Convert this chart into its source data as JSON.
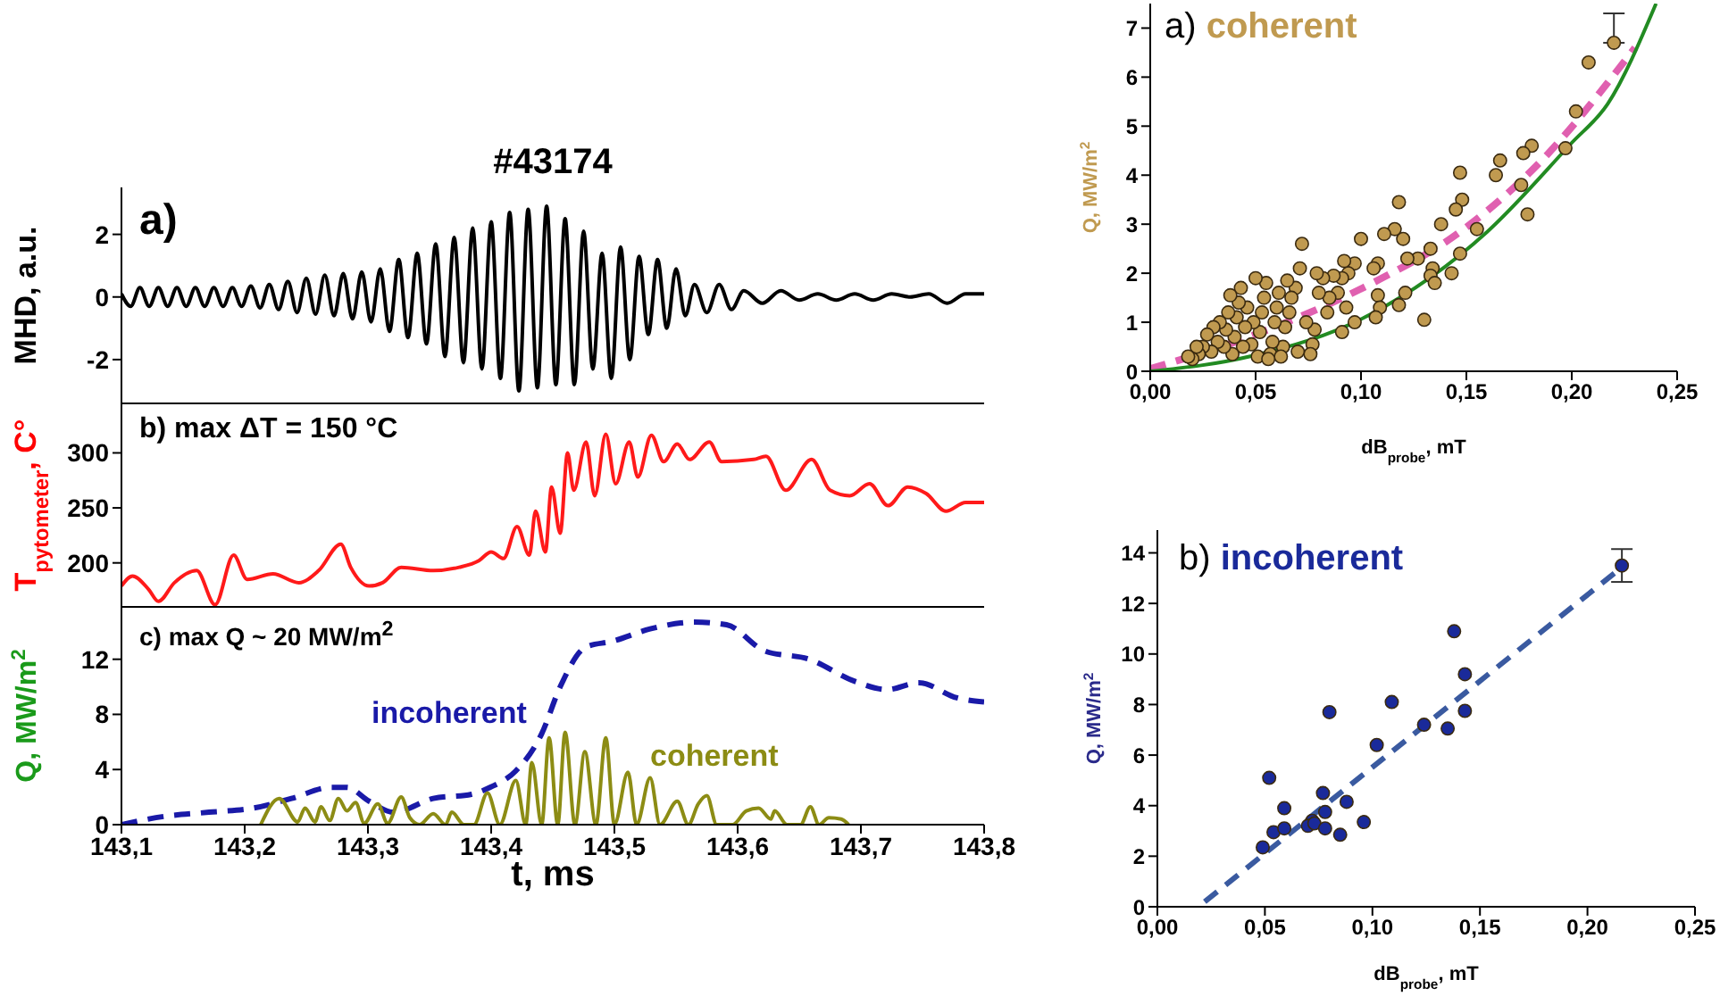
{
  "chart_data": [
    {
      "type": "line",
      "title": "#43174",
      "ylabel": "MHD, a.u.",
      "annotations": [
        "a)"
      ],
      "xlim": [
        143.1,
        143.8
      ],
      "xticks": [
        {
          "value": 143.1,
          "label": null
        },
        {
          "value": 143.2,
          "label": null
        },
        {
          "value": 143.3,
          "label": null
        },
        {
          "value": 143.4,
          "label": null
        },
        {
          "value": 143.5,
          "label": null
        },
        {
          "value": 143.6,
          "label": null
        },
        {
          "value": 143.7,
          "label": null
        },
        {
          "value": 143.8,
          "label": null
        }
      ],
      "ylim": [
        -3.4,
        3.5
      ],
      "yticks": [
        -2,
        0,
        2
      ],
      "tick_labels": "y",
      "series": [
        {
          "color": "#000000",
          "line_style": "solid",
          "x": [
            143.1,
            143.1075,
            143.115,
            143.1225,
            143.13,
            143.1375,
            143.145,
            143.1525,
            143.16,
            143.1675,
            143.175,
            143.1825,
            143.19,
            143.1975,
            143.205,
            143.2125,
            143.22,
            143.2275,
            143.235,
            143.2425,
            143.25,
            143.2575,
            143.265,
            143.2725,
            143.28,
            143.2875,
            143.295,
            143.3025,
            143.31,
            143.3175,
            143.325,
            143.3325,
            143.34,
            143.3475,
            143.355,
            143.3625,
            143.37,
            143.3775,
            143.385,
            143.3925,
            143.4,
            143.4075,
            143.415,
            143.4225,
            143.43,
            143.4375,
            143.445,
            143.4525,
            143.46,
            143.4675,
            143.475,
            143.4825,
            143.49,
            143.4975,
            143.505,
            143.5125,
            143.52,
            143.5275,
            143.535,
            143.5425,
            143.55,
            143.5575,
            143.565,
            143.575,
            143.585,
            143.595,
            143.605,
            143.62,
            143.635,
            143.65,
            143.665,
            143.68,
            143.695,
            143.71,
            143.725,
            143.74,
            143.755,
            143.77,
            143.785,
            143.8
          ],
          "values": [
            0.1,
            -0.3,
            0.3,
            -0.3,
            0.3,
            -0.3,
            0.3,
            -0.3,
            0.3,
            -0.3,
            0.3,
            -0.3,
            0.3,
            -0.3,
            0.35,
            -0.35,
            0.4,
            -0.4,
            0.5,
            -0.5,
            0.6,
            -0.55,
            0.7,
            -0.6,
            0.75,
            -0.7,
            0.8,
            -0.8,
            0.9,
            -1.1,
            1.2,
            -1.3,
            1.4,
            -1.5,
            1.7,
            -1.9,
            1.9,
            -2.1,
            2.2,
            -2.3,
            2.4,
            -2.6,
            2.7,
            -3.0,
            2.8,
            -2.9,
            2.9,
            -2.8,
            2.5,
            -2.8,
            2.1,
            -2.3,
            1.4,
            -2.6,
            1.6,
            -2.0,
            1.3,
            -1.2,
            1.2,
            -1.0,
            0.9,
            -0.6,
            0.4,
            -0.5,
            0.4,
            -0.4,
            0.2,
            -0.2,
            0.2,
            -0.1,
            0.1,
            -0.1,
            0.1,
            -0.1,
            0.1,
            0.0,
            0.1,
            -0.2,
            0.1,
            0.1
          ]
        }
      ]
    },
    {
      "type": "line",
      "ylabel": "T$_{pytometer}$, C°",
      "annotations": [
        "b) max ΔT = 150 °C"
      ],
      "xlim": [
        143.1,
        143.8
      ],
      "xticks": [
        {
          "value": 143.1,
          "label": null
        },
        {
          "value": 143.2,
          "label": null
        },
        {
          "value": 143.3,
          "label": null
        },
        {
          "value": 143.4,
          "label": null
        },
        {
          "value": 143.5,
          "label": null
        },
        {
          "value": 143.6,
          "label": null
        },
        {
          "value": 143.7,
          "label": null
        },
        {
          "value": 143.8,
          "label": null
        }
      ],
      "ylim": [
        160,
        345
      ],
      "yticks": [
        200,
        250,
        300
      ],
      "tick_labels": "y",
      "series": [
        {
          "color": "#ff1a1a",
          "line_style": "solid",
          "x": [
            143.1,
            143.109,
            143.122,
            143.13,
            143.143,
            143.161,
            143.176,
            143.191,
            143.202,
            143.223,
            143.244,
            143.26,
            143.278,
            143.286,
            143.301,
            143.312,
            143.327,
            143.353,
            143.374,
            143.39,
            143.4,
            143.41,
            143.421,
            143.431,
            143.436,
            143.444,
            143.449,
            143.456,
            143.462,
            143.467,
            143.477,
            143.484,
            143.493,
            143.501,
            143.512,
            143.519,
            143.53,
            143.54,
            143.551,
            143.561,
            143.577,
            143.587,
            143.613,
            143.623,
            143.639,
            143.66,
            143.675,
            143.691,
            143.707,
            143.722,
            143.738,
            143.753,
            143.769,
            143.785,
            143.8
          ],
          "values": [
            179,
            188,
            176,
            165,
            182,
            193,
            162,
            207,
            185,
            190,
            182,
            193,
            217,
            196,
            179,
            182,
            196,
            193,
            196,
            202,
            210,
            204,
            233,
            207,
            247,
            210,
            269,
            227,
            300,
            266,
            310,
            261,
            317,
            272,
            310,
            278,
            316,
            292,
            308,
            294,
            310,
            292,
            294,
            297,
            266,
            294,
            266,
            261,
            272,
            252,
            269,
            263,
            247,
            255,
            255
          ]
        }
      ]
    },
    {
      "type": "line",
      "ylabel": "Q, MW/m$^{2}$",
      "xlabel": "t, ms",
      "annotations": [
        "c) max Q ~ 20 MW/m$^{2}$"
      ],
      "xlim": [
        143.1,
        143.8
      ],
      "xticks": [
        {
          "value": 143.1,
          "label": "143,1"
        },
        {
          "value": 143.2,
          "label": "143,2"
        },
        {
          "value": 143.3,
          "label": "143,3"
        },
        {
          "value": 143.4,
          "label": "143,4"
        },
        {
          "value": 143.5,
          "label": "143,5"
        },
        {
          "value": 143.6,
          "label": "143,6"
        },
        {
          "value": 143.7,
          "label": "143,7"
        },
        {
          "value": 143.8,
          "label": "143,8"
        }
      ],
      "ylim": [
        0,
        15.8
      ],
      "yticks": [
        0,
        4,
        8,
        12
      ],
      "series": [
        {
          "name": "incoherent",
          "color": "#1a1aa8",
          "line_style": "dashed",
          "x": [
            143.1,
            143.135,
            143.171,
            143.207,
            143.238,
            143.27,
            143.283,
            143.301,
            143.321,
            143.353,
            143.384,
            143.399,
            143.42,
            143.441,
            143.456,
            143.477,
            143.498,
            143.529,
            143.565,
            143.591,
            143.622,
            143.658,
            143.695,
            143.721,
            143.747,
            143.778,
            143.8
          ],
          "values": [
            0,
            0.6,
            0.9,
            1.2,
            1.9,
            2.7,
            2.7,
            1.7,
            0.9,
            1.9,
            2.2,
            2.7,
            3.9,
            6.6,
            10.0,
            12.9,
            13.3,
            14.2,
            14.7,
            14.5,
            12.6,
            12.0,
            10.4,
            9.8,
            10.3,
            9.2,
            8.9
          ]
        },
        {
          "name": "coherent",
          "color": "#8c8c14",
          "line_style": "solid",
          "x": [
            143.213,
            143.228,
            143.243,
            143.249,
            143.257,
            143.262,
            143.269,
            143.276,
            143.283,
            143.29,
            143.297,
            143.308,
            143.316,
            143.327,
            143.334,
            143.342,
            143.353,
            143.363,
            143.368,
            143.378,
            143.386,
            143.397,
            143.407,
            143.42,
            143.428,
            143.433,
            143.441,
            143.447,
            143.454,
            143.46,
            143.468,
            143.476,
            143.485,
            143.493,
            143.5,
            143.511,
            143.518,
            143.529,
            143.537,
            143.551,
            143.56,
            143.568,
            143.575,
            143.583,
            143.596,
            143.607,
            143.617,
            143.627,
            143.63,
            143.64,
            143.651,
            143.659,
            143.666,
            143.674,
            143.684,
            143.69
          ],
          "values": [
            0,
            1.9,
            0.2,
            1.2,
            0.2,
            1.3,
            0.3,
            1.9,
            1.0,
            1.6,
            0.1,
            1.5,
            0.1,
            2.0,
            0.5,
            0,
            0.8,
            0,
            0.9,
            0,
            0,
            2.3,
            0,
            3.2,
            0,
            4.5,
            0,
            6.3,
            0,
            6.7,
            0,
            5.3,
            0,
            6.3,
            0,
            3.8,
            0,
            3.4,
            0,
            1.7,
            0,
            1.5,
            2.1,
            0,
            0,
            1.0,
            1.2,
            0.4,
            1.0,
            0,
            0,
            1.3,
            0,
            0.5,
            0.4,
            0
          ]
        }
      ]
    },
    {
      "type": "scatter",
      "title": "a) coherent",
      "xlabel": "dB$_{probe}$, mT",
      "ylabel": "Q, MW/m$^{2}$",
      "xlim": [
        0,
        0.25
      ],
      "xticks": [
        {
          "value": 0,
          "label": "0,00"
        },
        {
          "value": 0.05,
          "label": "0,05"
        },
        {
          "value": 0.1,
          "label": "0,10"
        },
        {
          "value": 0.15,
          "label": "0,15"
        },
        {
          "value": 0.2,
          "label": "0,20"
        },
        {
          "value": 0.25,
          "label": "0,25"
        }
      ],
      "ylim": [
        0,
        7.5
      ],
      "yticks": [
        0,
        1,
        2,
        3,
        4,
        5,
        6,
        7
      ],
      "series": [
        {
          "marker": "circle",
          "color": "#c09a50",
          "x": [
            0.22,
            0.208,
            0.202,
            0.197,
            0.181,
            0.177,
            0.176,
            0.179,
            0.166,
            0.164,
            0.147,
            0.148,
            0.145,
            0.155,
            0.147,
            0.143,
            0.138,
            0.133,
            0.134,
            0.133,
            0.135,
            0.13,
            0.127,
            0.122,
            0.12,
            0.118,
            0.116,
            0.121,
            0.118,
            0.111,
            0.108,
            0.106,
            0.108,
            0.109,
            0.107,
            0.1,
            0.097,
            0.094,
            0.092,
            0.091,
            0.089,
            0.093,
            0.091,
            0.097,
            0.087,
            0.085,
            0.082,
            0.079,
            0.08,
            0.078,
            0.077,
            0.076,
            0.072,
            0.071,
            0.069,
            0.067,
            0.066,
            0.065,
            0.064,
            0.063,
            0.061,
            0.06,
            0.059,
            0.058,
            0.057,
            0.055,
            0.054,
            0.053,
            0.052,
            0.051,
            0.05,
            0.049,
            0.048,
            0.046,
            0.045,
            0.044,
            0.043,
            0.042,
            0.041,
            0.04,
            0.039,
            0.038,
            0.037,
            0.036,
            0.035,
            0.033,
            0.032,
            0.03,
            0.029,
            0.027,
            0.025,
            0.023,
            0.022,
            0.02,
            0.018,
            0.07,
            0.074,
            0.062,
            0.056,
            0.084
          ],
          "values": [
            6.7,
            6.3,
            5.3,
            4.55,
            4.6,
            4.45,
            3.8,
            3.2,
            4.3,
            4.0,
            4.05,
            3.5,
            3.3,
            2.9,
            2.4,
            2.0,
            3.0,
            2.5,
            2.1,
            1.95,
            1.8,
            1.05,
            2.3,
            2.3,
            2.7,
            3.45,
            2.9,
            1.6,
            1.35,
            2.8,
            2.2,
            2.1,
            1.55,
            1.3,
            1.1,
            2.7,
            2.2,
            2.0,
            2.25,
            1.9,
            1.6,
            1.3,
            0.8,
            1.0,
            1.95,
            1.5,
            1.9,
            2.0,
            1.6,
            0.85,
            0.55,
            0.35,
            2.6,
            2.1,
            1.7,
            1.5,
            1.2,
            1.85,
            0.9,
            0.5,
            1.6,
            1.3,
            1.0,
            0.6,
            0.35,
            1.8,
            1.5,
            1.2,
            0.8,
            0.3,
            1.9,
            1.0,
            0.55,
            1.3,
            0.9,
            0.5,
            1.7,
            1.4,
            1.1,
            0.7,
            0.35,
            1.55,
            1.2,
            0.85,
            0.5,
            1.0,
            0.6,
            0.9,
            0.4,
            0.75,
            0.5,
            0.35,
            0.5,
            0.25,
            0.3,
            0.4,
            1.0,
            0.3,
            0.25,
            1.2
          ],
          "errors": [
            [
              6.7,
              7.3
            ],
            null,
            null,
            null,
            null,
            null,
            null,
            null,
            null,
            null,
            null,
            null,
            null,
            null,
            null,
            null,
            null,
            null,
            null,
            null,
            null,
            null,
            null,
            null,
            null,
            null,
            null,
            null,
            null,
            null,
            null,
            null,
            null,
            null,
            null,
            null,
            null,
            null,
            null,
            null,
            null,
            null,
            null,
            null,
            null,
            null,
            null,
            null,
            null,
            null,
            null,
            null,
            null,
            null,
            null,
            null,
            null,
            null,
            null,
            null,
            null,
            null,
            null,
            null,
            null,
            null,
            null,
            null,
            null,
            null,
            null,
            null,
            null,
            null,
            null,
            null,
            null,
            null,
            null,
            null,
            null,
            null,
            null,
            null,
            null,
            null,
            null,
            null,
            null,
            null,
            null,
            null,
            null,
            null,
            null,
            null,
            null,
            null,
            null,
            null
          ]
        },
        {
          "type": "line",
          "color": "#e060b0",
          "line_style": "dashed",
          "x": [
            0,
            0.05,
            0.109,
            0.143,
            0.183,
            0.23
          ],
          "values": [
            0.05,
            0.75,
            1.88,
            2.72,
            4.18,
            6.6
          ]
        },
        {
          "type": "line",
          "color": "#228b22",
          "line_style": "solid",
          "x": [
            0,
            0.047,
            0.104,
            0.16,
            0.2,
            0.217,
            0.24
          ],
          "values": [
            0,
            0.3,
            1.15,
            2.85,
            4.66,
            5.45,
            7.5
          ]
        }
      ]
    },
    {
      "type": "scatter",
      "title": "b) incoherent",
      "xlabel": "dB$_{probe}$, mT",
      "ylabel": "Q, MW/m$^{2}$",
      "xlim": [
        0,
        0.25
      ],
      "xticks": [
        {
          "value": 0,
          "label": "0,00"
        },
        {
          "value": 0.05,
          "label": "0,05"
        },
        {
          "value": 0.1,
          "label": "0,10"
        },
        {
          "value": 0.15,
          "label": "0,15"
        },
        {
          "value": 0.2,
          "label": "0,20"
        },
        {
          "value": 0.25,
          "label": "0,25"
        }
      ],
      "ylim": [
        0,
        14.9
      ],
      "yticks": [
        0,
        2,
        4,
        6,
        8,
        10,
        12,
        14
      ],
      "series": [
        {
          "marker": "circle",
          "color": "#1a2a9a",
          "x": [
            0.216,
            0.138,
            0.143,
            0.143,
            0.135,
            0.124,
            0.109,
            0.102,
            0.08,
            0.052,
            0.077,
            0.059,
            0.088,
            0.078,
            0.096,
            0.072,
            0.07,
            0.073,
            0.054,
            0.059,
            0.078,
            0.085,
            0.049
          ],
          "values": [
            13.5,
            10.9,
            9.2,
            7.75,
            7.05,
            7.2,
            8.1,
            6.4,
            7.7,
            5.1,
            4.5,
            3.9,
            4.15,
            3.75,
            3.35,
            3.4,
            3.2,
            3.3,
            2.95,
            3.1,
            3.1,
            2.85,
            2.35
          ],
          "errors": [
            0.65,
            null,
            null,
            null,
            null,
            null,
            null,
            null,
            null,
            null,
            null,
            null,
            null,
            null,
            null,
            null,
            null,
            null,
            null,
            null,
            null,
            null,
            null
          ]
        },
        {
          "type": "line",
          "color": "#3a5aa0",
          "line_style": "dashed",
          "x": [
            0.022,
            0.217
          ],
          "values": [
            0.2,
            13.5
          ]
        }
      ]
    }
  ]
}
